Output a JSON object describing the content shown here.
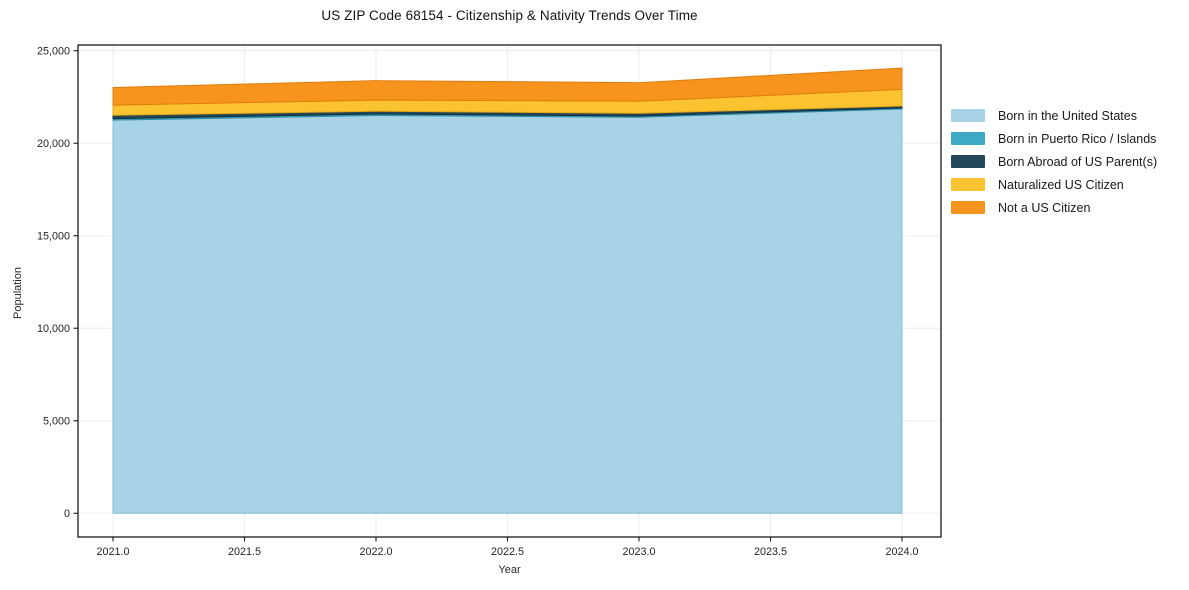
{
  "chart_data": {
    "type": "area",
    "stacked": true,
    "title": "US ZIP Code 68154 - Citizenship & Nativity Trends Over Time",
    "xlabel": "Year",
    "ylabel": "Population",
    "x": [
      2021,
      2022,
      2023,
      2024
    ],
    "series": [
      {
        "name": "Born in the United States",
        "color": "#a8d2e6",
        "edge": "#85bcd8",
        "values": [
          21250,
          21500,
          21400,
          21850
        ]
      },
      {
        "name": "Born in Puerto Rico / Islands",
        "color": "#3fa9c4",
        "edge": "#2e8ba6",
        "values": [
          80,
          80,
          70,
          60
        ]
      },
      {
        "name": "Born Abroad of US Parent(s)",
        "color": "#23485a",
        "edge": "#132e3c",
        "values": [
          180,
          150,
          150,
          100
        ]
      },
      {
        "name": "Naturalized US Citizen",
        "color": "#fcc330",
        "edge": "#e8a714",
        "values": [
          550,
          600,
          650,
          900
        ]
      },
      {
        "name": "Not a US Citizen",
        "color": "#f7941e",
        "edge": "#e07c0e",
        "values": [
          950,
          1050,
          1000,
          1150
        ]
      }
    ],
    "x_ticks": [
      "2021.0",
      "2021.5",
      "2022.0",
      "2022.5",
      "2023.0",
      "2023.5",
      "2024.0"
    ],
    "y_ticks": [
      "0",
      "5,000",
      "10,000",
      "15,000",
      "20,000",
      "25,000"
    ],
    "xlim": [
      2020.87,
      2024.15
    ],
    "ylim": [
      -1280,
      25310
    ],
    "grid": true,
    "grid_color": "#ededed",
    "spine_color": "#1a1a1a",
    "tick_label_color": "#262626",
    "legend_position": "right-outside"
  }
}
